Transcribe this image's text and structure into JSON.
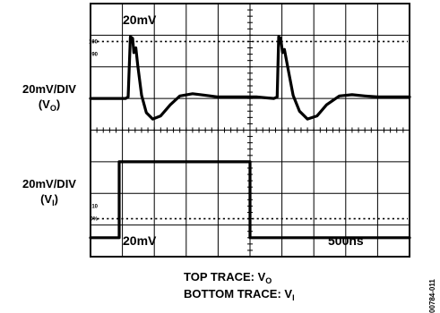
{
  "chart_data": {
    "type": "line",
    "title": "",
    "grid": true,
    "screen": {
      "h_divisions": 10,
      "v_divisions": 8
    },
    "xlabel": "",
    "x_unit": "DIV",
    "scale_labels": {
      "top_inside": "20mV",
      "bottom_inside": "20mV",
      "time_per_div": "500ns"
    },
    "axis_labels": {
      "top_line1": "20mV/DIV",
      "top_line2_open": "(V",
      "top_line2_sub": "O",
      "top_line2_close": ")",
      "bottom_line1": "20mV/DIV",
      "bottom_line2_open": "(V",
      "bottom_line2_sub": "I",
      "bottom_line2_close": ")"
    },
    "markers": {
      "top": {
        "upper_label": "100",
        "upper_div": 6.8,
        "lower_label": "90",
        "lower_div": 6.4
      },
      "bottom": {
        "upper_label": "10",
        "upper_div": 1.6,
        "lower_label": "0%",
        "lower_div": 1.2
      }
    },
    "captions": {
      "top_text": "TOP TRACE: V",
      "top_sub": "O",
      "bottom_text": "BOTTOM TRACE: V",
      "bottom_sub": "I"
    },
    "figure_id": "00784-011",
    "series": [
      {
        "trace": "top",
        "x": [
          0,
          0.8,
          1.1,
          1.18,
          1.25,
          1.32,
          1.36,
          1.42,
          1.48,
          1.6,
          1.75,
          1.95,
          2.2,
          2.5,
          2.8,
          3.2,
          3.6,
          4.0,
          4.4,
          4.8,
          5.2,
          5.5,
          5.75,
          5.85,
          5.9,
          5.96,
          6.02,
          6.08,
          6.2,
          6.35,
          6.55,
          6.8,
          7.1,
          7.4,
          7.8,
          8.2,
          8.6,
          9.0,
          9.5,
          10.0
        ],
        "y": [
          5.0,
          5.0,
          5.0,
          5.05,
          6.95,
          6.9,
          6.45,
          6.6,
          6.05,
          5.1,
          4.55,
          4.35,
          4.45,
          4.8,
          5.08,
          5.15,
          5.1,
          5.05,
          5.05,
          5.05,
          5.05,
          5.02,
          5.0,
          5.05,
          6.95,
          6.9,
          6.45,
          6.55,
          5.9,
          5.1,
          4.6,
          4.35,
          4.45,
          4.8,
          5.08,
          5.12,
          5.08,
          5.05,
          5.05,
          5.05
        ]
      },
      {
        "trace": "bottom",
        "x": [
          0,
          0.9,
          0.9,
          5.0,
          5.0,
          10.0
        ],
        "y": [
          0.6,
          0.6,
          3.0,
          3.0,
          0.6,
          0.6
        ]
      }
    ]
  }
}
